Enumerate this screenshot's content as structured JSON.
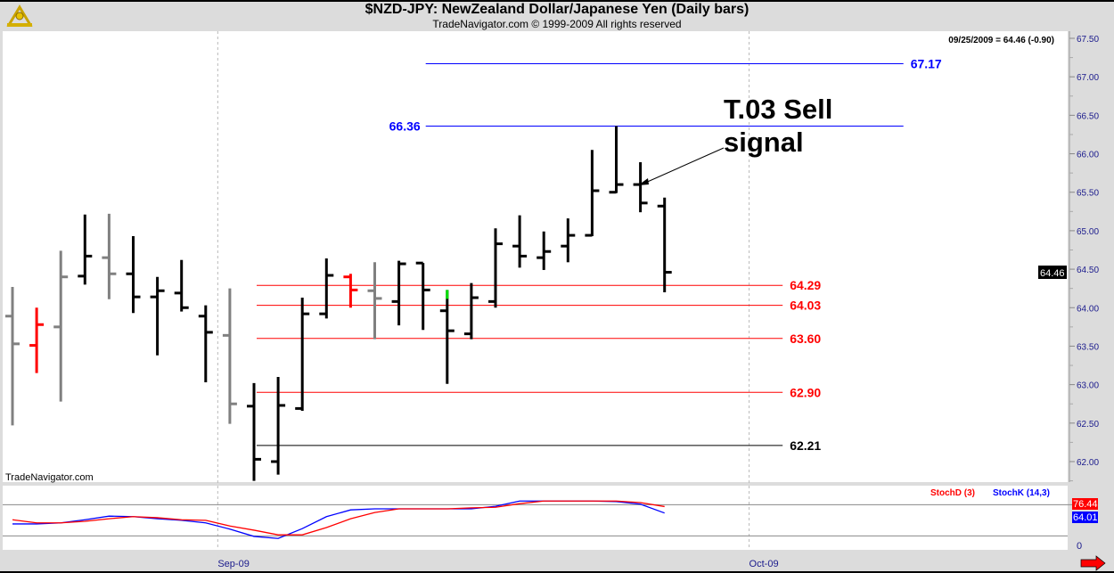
{
  "header": {
    "title": "$NZD-JPY:  NewZealand Dollar/Japanese Yen  (Daily bars)",
    "subtitle": "TradeNavigator.com © 1999-2009 All rights reserved"
  },
  "watermark": "TradeNavigator.com",
  "last_quote": "09/25/2009 = 64.46 (-0.90)",
  "price_badge": "64.46",
  "annotation": {
    "line1": "T.03 Sell",
    "line2": "signal"
  },
  "indicator": {
    "d_label": "StochD (3)",
    "k_label": "StochK (14,3)",
    "d_badge": "76.44",
    "k_badge": "64.01",
    "zero_label": "0"
  },
  "x_labels": [
    {
      "text": "Sep-09",
      "bar": 8.5
    },
    {
      "text": "Oct-09",
      "bar": 30.5
    }
  ],
  "colors": {
    "up": "#000000",
    "gray": "#808080",
    "red": "#ff0000",
    "blue": "#0000ff",
    "axis": "#1a1a8c"
  },
  "chart_data": {
    "type": "ohlc",
    "title": "$NZD-JPY: NewZealand Dollar/Japanese Yen (Daily bars)",
    "ylim": [
      61.7,
      67.6
    ],
    "yticks": [
      "67.50",
      "67.00",
      "66.50",
      "66.00",
      "65.50",
      "65.00",
      "64.50",
      "64.00",
      "63.50",
      "63.00",
      "62.50",
      "62.00"
    ],
    "bars": [
      {
        "o": 63.89,
        "h": 64.27,
        "l": 62.47,
        "c": 63.53,
        "color": "gray"
      },
      {
        "o": 63.51,
        "h": 64.0,
        "l": 63.15,
        "c": 63.78,
        "color": "red"
      },
      {
        "o": 63.75,
        "h": 64.74,
        "l": 62.78,
        "c": 64.4,
        "color": "gray"
      },
      {
        "o": 64.41,
        "h": 65.21,
        "l": 64.3,
        "c": 64.67,
        "color": "up"
      },
      {
        "o": 64.65,
        "h": 65.22,
        "l": 64.11,
        "c": 64.44,
        "color": "gray"
      },
      {
        "o": 64.44,
        "h": 64.93,
        "l": 63.93,
        "c": 64.14,
        "color": "up"
      },
      {
        "o": 64.14,
        "h": 64.4,
        "l": 63.38,
        "c": 64.22,
        "color": "up"
      },
      {
        "o": 64.19,
        "h": 64.62,
        "l": 63.95,
        "c": 64.0,
        "color": "up"
      },
      {
        "o": 63.89,
        "h": 64.03,
        "l": 63.03,
        "c": 63.68,
        "color": "up"
      },
      {
        "o": 63.64,
        "h": 64.25,
        "l": 62.49,
        "c": 62.75,
        "color": "gray"
      },
      {
        "o": 62.72,
        "h": 63.02,
        "l": 61.75,
        "c": 62.03,
        "color": "up"
      },
      {
        "o": 62.0,
        "h": 63.1,
        "l": 61.83,
        "c": 62.73,
        "color": "up"
      },
      {
        "o": 62.69,
        "h": 64.13,
        "l": 62.66,
        "c": 63.92,
        "color": "up"
      },
      {
        "o": 63.92,
        "h": 64.64,
        "l": 63.86,
        "c": 64.42,
        "color": "up"
      },
      {
        "o": 64.4,
        "h": 64.44,
        "l": 64.0,
        "c": 64.23,
        "color": "red"
      },
      {
        "o": 64.22,
        "h": 64.59,
        "l": 63.59,
        "c": 64.12,
        "color": "gray"
      },
      {
        "o": 64.08,
        "h": 64.61,
        "l": 63.77,
        "c": 64.57,
        "color": "up"
      },
      {
        "o": 64.58,
        "h": 64.58,
        "l": 63.71,
        "c": 64.23,
        "color": "up"
      },
      {
        "o": 63.96,
        "h": 64.23,
        "l": 63.01,
        "c": 63.7,
        "color": "up",
        "tip": "green"
      },
      {
        "o": 63.66,
        "h": 64.32,
        "l": 63.59,
        "c": 64.13,
        "color": "up"
      },
      {
        "o": 64.08,
        "h": 65.03,
        "l": 64.0,
        "c": 64.83,
        "color": "up"
      },
      {
        "o": 64.8,
        "h": 65.2,
        "l": 64.52,
        "c": 64.67,
        "color": "up"
      },
      {
        "o": 64.65,
        "h": 64.99,
        "l": 64.49,
        "c": 64.73,
        "color": "up"
      },
      {
        "o": 64.8,
        "h": 65.16,
        "l": 64.59,
        "c": 64.94,
        "color": "up"
      },
      {
        "o": 64.94,
        "h": 66.05,
        "l": 64.93,
        "c": 65.52,
        "color": "up"
      },
      {
        "o": 65.5,
        "h": 66.36,
        "l": 65.49,
        "c": 65.6,
        "color": "up"
      },
      {
        "o": 65.6,
        "h": 65.89,
        "l": 65.24,
        "c": 65.36,
        "color": "up"
      },
      {
        "o": 65.32,
        "h": 65.43,
        "l": 64.2,
        "c": 64.46,
        "color": "up"
      }
    ],
    "levels": [
      {
        "value": 67.17,
        "label": "67.17",
        "color": "blue",
        "from_bar": 17,
        "to_bar": 37
      },
      {
        "value": 66.36,
        "label": "66.36",
        "color": "blue",
        "from_bar": 17,
        "to_bar": 37,
        "label_left": true
      },
      {
        "value": 64.29,
        "label": "64.29",
        "color": "red",
        "from_bar": 10,
        "to_bar": 32
      },
      {
        "value": 64.03,
        "label": "64.03",
        "color": "red",
        "from_bar": 10,
        "to_bar": 32
      },
      {
        "value": 63.6,
        "label": "63.60",
        "color": "red",
        "from_bar": 10,
        "to_bar": 32
      },
      {
        "value": 62.9,
        "label": "62.90",
        "color": "red",
        "from_bar": 10,
        "to_bar": 32
      },
      {
        "value": 62.21,
        "label": "62.21",
        "color": "up",
        "from_bar": 10,
        "to_bar": 32
      }
    ],
    "stochastic": {
      "ylim": [
        0,
        100
      ],
      "bands": [
        20,
        80
      ],
      "k": [
        43,
        43,
        45,
        51,
        58,
        57,
        53,
        50,
        45,
        33,
        19,
        15,
        34,
        57,
        70,
        72,
        72,
        72,
        72,
        72,
        77,
        87,
        87,
        87,
        87,
        86,
        81,
        64.01
      ],
      "d": [
        51,
        45,
        45,
        48,
        53,
        57,
        55,
        51,
        50,
        39,
        31,
        22,
        22,
        36,
        53,
        65,
        72,
        72,
        72,
        74,
        75,
        82,
        87,
        87,
        87,
        87,
        84,
        76.44
      ]
    }
  }
}
